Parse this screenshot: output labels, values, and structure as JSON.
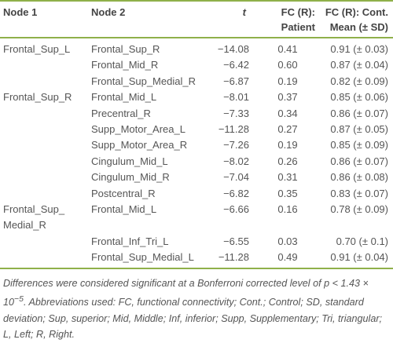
{
  "table": {
    "columns": [
      "Node 1",
      "Node 2",
      "t",
      "FC (R):\nPatient",
      "FC (R): Cont.\nMean (± SD)"
    ],
    "rows": [
      [
        "Frontal_Sup_L",
        "Frontal_Sup_R",
        "−14.08",
        "0.41",
        "0.91 (± 0.03)"
      ],
      [
        null,
        "Frontal_Mid_R",
        "−6.42",
        "0.60",
        "0.87 (± 0.04)"
      ],
      [
        null,
        "Frontal_Sup_Medial_R",
        "−6.87",
        "0.19",
        "0.82 (± 0.09)"
      ],
      [
        "Frontal_Sup_R",
        "Frontal_Mid_L",
        "−8.01",
        "0.37",
        "0.85 (± 0.06)"
      ],
      [
        null,
        "Precentral_R",
        "−7.33",
        "0.34",
        "0.86 (± 0.07)"
      ],
      [
        null,
        "Supp_Motor_Area_L",
        "−11.28",
        "0.27",
        "0.87 (± 0.05)"
      ],
      [
        null,
        "Supp_Motor_Area_R",
        "−7.26",
        "0.19",
        "0.85 (± 0.09)"
      ],
      [
        null,
        "Cingulum_Mid_L",
        "−8.02",
        "0.26",
        "0.86 (± 0.07)"
      ],
      [
        null,
        "Cingulum_Mid_R",
        "−7.04",
        "0.31",
        "0.86 (± 0.08)"
      ],
      [
        null,
        "Postcentral_R",
        "−6.82",
        "0.35",
        "0.83 (± 0.07)"
      ],
      [
        "Frontal_Sup_\nMedial_R",
        "Frontal_Mid_L",
        "−6.66",
        "0.16",
        "0.78 (± 0.09)"
      ],
      [
        null,
        "Frontal_Inf_Tri_L",
        "−6.55",
        "0.03",
        "0.70 (± 0.1)"
      ],
      [
        null,
        "Frontal_Sup_Medial_L",
        "−11.28",
        "0.49",
        "0.91 (± 0.04)"
      ]
    ]
  },
  "footnote": {
    "before": "Differences were considered significant at a Bonferroni corrected level of p < 1.43 × 10",
    "superscript": "−5",
    "after": ". Abbreviations used: FC, functional connectivity; Cont.; Control; SD, standard deviation; Sup, superior; Mid, Middle; Inf, inferior; Supp, Supplementary; Tri, triangular; L, Left; R, Right."
  }
}
